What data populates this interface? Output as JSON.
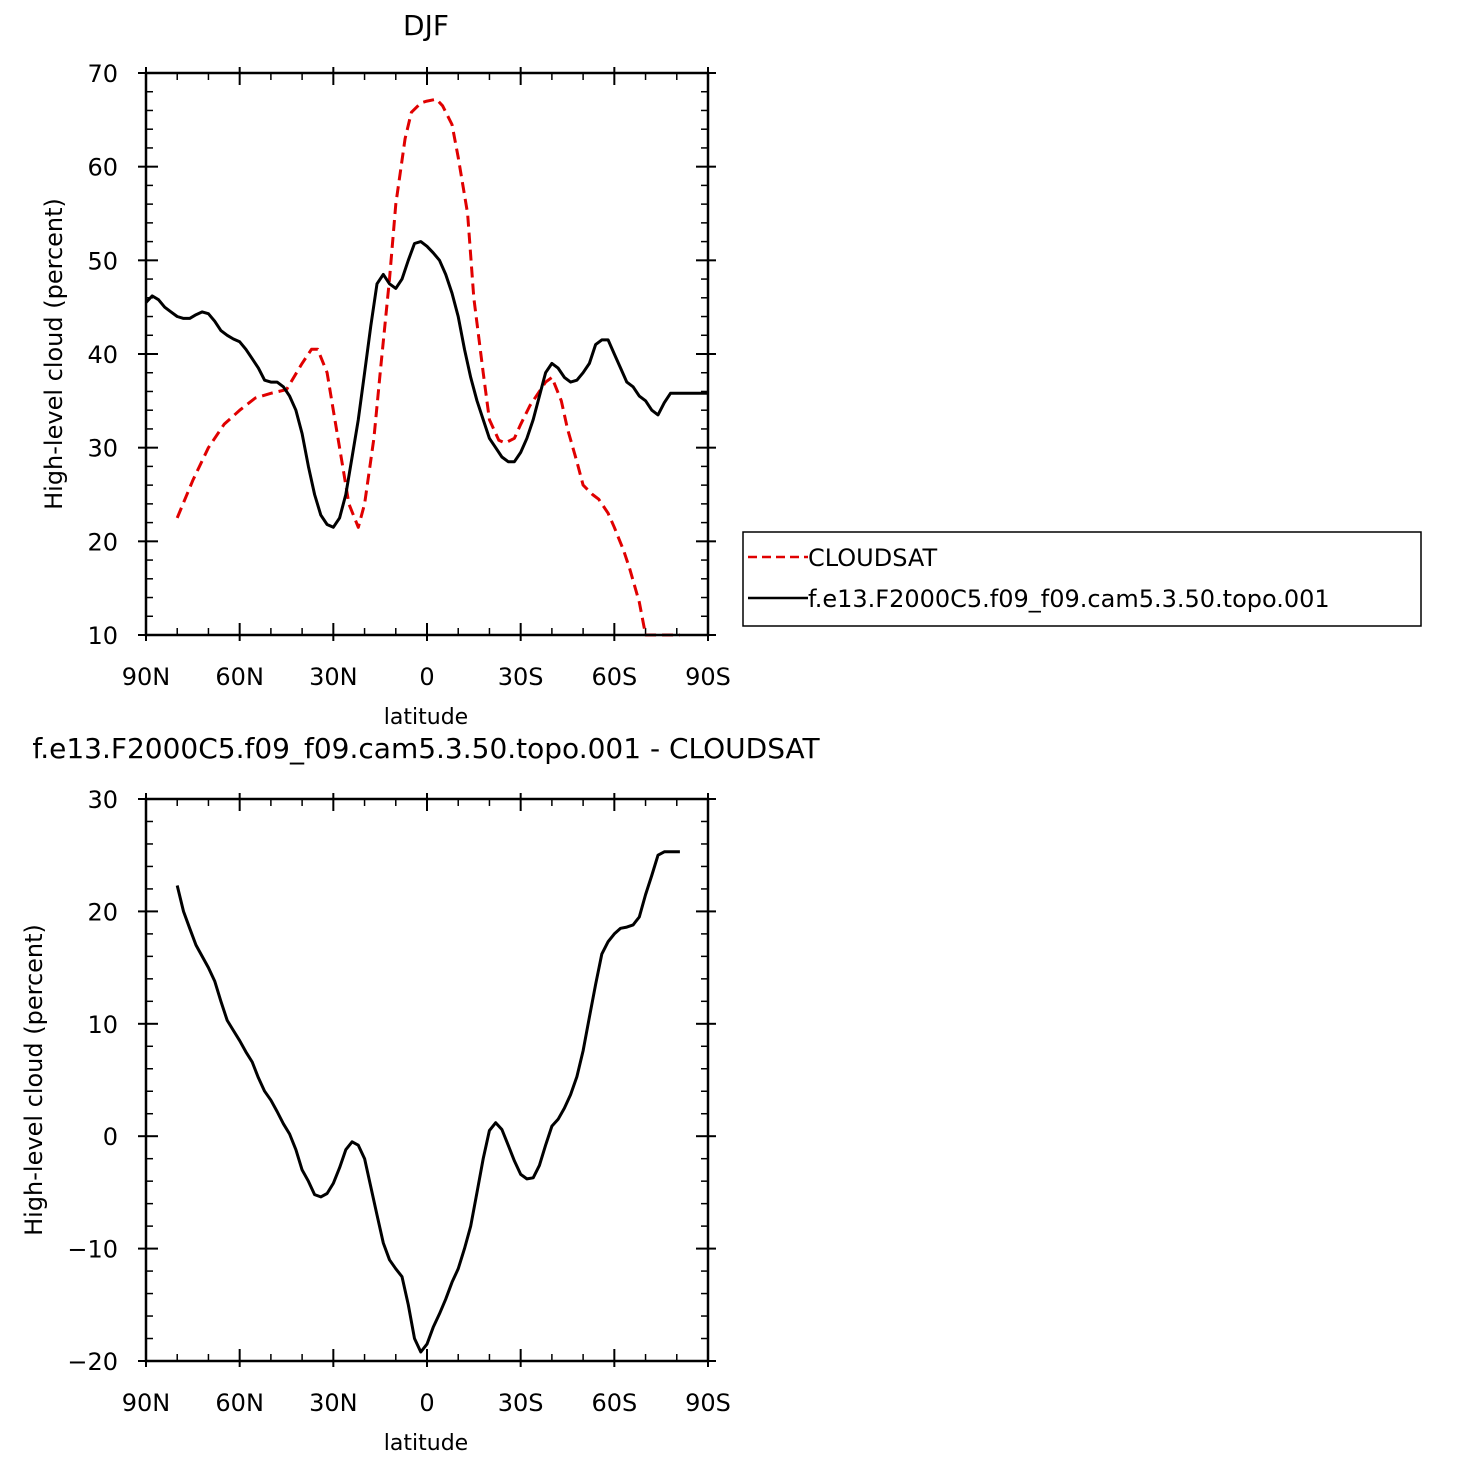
{
  "chart_data": [
    {
      "type": "line",
      "title": "DJF",
      "xlabel": "latitude",
      "ylabel": "High-level cloud (percent)",
      "xlim": [
        90,
        -90
      ],
      "ylim": [
        10,
        70
      ],
      "x_ticks": [
        {
          "value": 90,
          "label": "90N"
        },
        {
          "value": 60,
          "label": "60N"
        },
        {
          "value": 30,
          "label": "30N"
        },
        {
          "value": 0,
          "label": "0"
        },
        {
          "value": -30,
          "label": "30S"
        },
        {
          "value": -60,
          "label": "60S"
        },
        {
          "value": -90,
          "label": "90S"
        }
      ],
      "y_ticks": [
        {
          "value": 10,
          "label": "10"
        },
        {
          "value": 20,
          "label": "20"
        },
        {
          "value": 30,
          "label": "30"
        },
        {
          "value": 40,
          "label": "40"
        },
        {
          "value": 50,
          "label": "50"
        },
        {
          "value": 60,
          "label": "60"
        },
        {
          "value": 70,
          "label": "70"
        }
      ],
      "legend": {
        "placement": "right",
        "entries": [
          {
            "label": "CLOUDSAT",
            "color": "#e00000",
            "style": "dashed"
          },
          {
            "label": "f.e13.F2000C5.f09_f09.cam5.3.50.topo.001",
            "color": "#000000",
            "style": "solid"
          }
        ]
      },
      "series": [
        {
          "name": "CLOUDSAT",
          "color": "#e00000",
          "dash": true,
          "x": [
            80,
            75,
            70,
            65,
            60,
            55,
            50,
            45,
            40,
            37,
            35,
            32,
            30,
            27,
            25,
            22,
            20,
            17,
            15,
            12,
            10,
            7,
            5,
            2,
            0,
            -3,
            -5,
            -8,
            -10,
            -13,
            -15,
            -18,
            -20,
            -23,
            -25,
            -28,
            -30,
            -33,
            -35,
            -38,
            -40,
            -43,
            -45,
            -48,
            -50,
            -53,
            -55,
            -58,
            -60,
            -63,
            -65,
            -68,
            -70,
            -73,
            -75,
            -78,
            -80,
            -81
          ],
          "y": [
            22.5,
            26.5,
            30,
            32.5,
            34,
            35.3,
            35.8,
            36.2,
            39,
            40.5,
            40.5,
            38,
            34,
            28,
            24,
            21.5,
            24,
            31,
            38,
            48,
            56,
            63,
            65.8,
            66.8,
            67,
            67.2,
            66.5,
            64.5,
            61,
            55,
            46,
            38,
            33,
            30.8,
            30.5,
            31,
            32.5,
            34.5,
            35.5,
            37,
            37.5,
            35,
            32,
            28.5,
            26,
            25,
            24.5,
            23,
            21.5,
            19,
            17,
            13.5,
            10,
            10,
            10,
            10,
            10,
            10
          ]
        },
        {
          "name": "f.e13.F2000C5.f09_f09.cam5.3.50.topo.001",
          "color": "#000000",
          "dash": false,
          "x": [
            90,
            88,
            86,
            84,
            82,
            80,
            78,
            76,
            74,
            72,
            70,
            68,
            66,
            64,
            62,
            60,
            58,
            56,
            54,
            52,
            50,
            48,
            46,
            44,
            42,
            40,
            38,
            36,
            34,
            32,
            30,
            28,
            26,
            24,
            22,
            20,
            18,
            16,
            14,
            12,
            10,
            8,
            6,
            4,
            2,
            0,
            -2,
            -4,
            -6,
            -8,
            -10,
            -12,
            -14,
            -16,
            -18,
            -20,
            -22,
            -24,
            -26,
            -28,
            -30,
            -32,
            -34,
            -36,
            -38,
            -40,
            -42,
            -44,
            -46,
            -48,
            -50,
            -52,
            -54,
            -56,
            -58,
            -60,
            -62,
            -64,
            -66,
            -68,
            -70,
            -72,
            -74,
            -76,
            -78,
            -80,
            -82,
            -84,
            -86,
            -88,
            -90
          ],
          "y": [
            45.5,
            46.2,
            45.8,
            45,
            44.5,
            44,
            43.8,
            43.8,
            44.2,
            44.5,
            44.3,
            43.5,
            42.5,
            42,
            41.6,
            41.3,
            40.5,
            39.5,
            38.5,
            37.2,
            37,
            37,
            36.5,
            35.5,
            34,
            31.5,
            28,
            25,
            22.8,
            21.8,
            21.5,
            22.5,
            25,
            29,
            33,
            38,
            43,
            47.5,
            48.5,
            47.5,
            47,
            48,
            50,
            51.8,
            52,
            51.5,
            50.8,
            50,
            48.5,
            46.5,
            44,
            40.5,
            37.5,
            35,
            33,
            31,
            30,
            29,
            28.5,
            28.5,
            29.5,
            31,
            33,
            35.5,
            38,
            39,
            38.5,
            37.5,
            37,
            37.2,
            38,
            39,
            41,
            41.5,
            41.5,
            40,
            38.5,
            37,
            36.5,
            35.5,
            35,
            34,
            33.5,
            34.8,
            35.8,
            35.8,
            35.8,
            35.8,
            35.8,
            35.8,
            35.8
          ]
        }
      ]
    },
    {
      "type": "line",
      "title": "f.e13.F2000C5.f09_f09.cam5.3.50.topo.001  -  CLOUDSAT",
      "xlabel": "latitude",
      "ylabel": "High-level cloud (percent)",
      "xlim": [
        90,
        -90
      ],
      "ylim": [
        -20,
        30
      ],
      "x_ticks": [
        {
          "value": 90,
          "label": "90N"
        },
        {
          "value": 60,
          "label": "60N"
        },
        {
          "value": 30,
          "label": "30N"
        },
        {
          "value": 0,
          "label": "0"
        },
        {
          "value": -30,
          "label": "30S"
        },
        {
          "value": -60,
          "label": "60S"
        },
        {
          "value": -90,
          "label": "90S"
        }
      ],
      "y_ticks": [
        {
          "value": -20,
          "label": "−20"
        },
        {
          "value": -10,
          "label": "−10"
        },
        {
          "value": 0,
          "label": "0"
        },
        {
          "value": 10,
          "label": "10"
        },
        {
          "value": 20,
          "label": "20"
        },
        {
          "value": 30,
          "label": "30"
        }
      ],
      "series": [
        {
          "color": "#000000",
          "dash": false,
          "x": [
            80,
            78,
            76,
            74,
            72,
            70,
            68,
            66,
            64,
            62,
            60,
            58,
            56,
            54,
            52,
            50,
            48,
            46,
            44,
            42,
            40,
            38,
            36,
            34,
            32,
            30,
            28,
            26,
            24,
            22,
            20,
            18,
            16,
            14,
            12,
            10,
            8,
            6,
            4,
            2,
            0,
            -2,
            -4,
            -6,
            -8,
            -10,
            -12,
            -14,
            -16,
            -18,
            -20,
            -22,
            -24,
            -26,
            -28,
            -30,
            -32,
            -34,
            -36,
            -38,
            -40,
            -42,
            -44,
            -46,
            -48,
            -50,
            -52,
            -54,
            -56,
            -58,
            -60,
            -62,
            -64,
            -66,
            -68,
            -70,
            -72,
            -74,
            -76,
            -78,
            -80,
            -81
          ],
          "y": [
            22.3,
            20,
            18.5,
            17,
            16,
            15,
            13.8,
            12,
            10.3,
            9.4,
            8.5,
            7.5,
            6.6,
            5.2,
            4,
            3.2,
            2.2,
            1.1,
            0.2,
            -1.2,
            -3,
            -4,
            -5.2,
            -5.4,
            -5.1,
            -4.2,
            -2.8,
            -1.2,
            -0.5,
            -0.8,
            -2,
            -4.5,
            -7,
            -9.5,
            -11,
            -11.8,
            -12.5,
            -15,
            -18,
            -19.2,
            -18.5,
            -17,
            -15.8,
            -14.5,
            -13,
            -11.8,
            -10,
            -8,
            -5,
            -2,
            0.5,
            1.2,
            0.6,
            -0.8,
            -2.2,
            -3.4,
            -3.8,
            -3.7,
            -2.6,
            -0.8,
            0.9,
            1.5,
            2.5,
            3.7,
            5.3,
            7.6,
            10.6,
            13.5,
            16.2,
            17.3,
            18.0,
            18.5,
            18.6,
            18.8,
            19.5,
            21.5,
            23.2,
            25.0,
            25.3,
            25.3,
            25.3,
            25.3
          ]
        }
      ]
    }
  ]
}
